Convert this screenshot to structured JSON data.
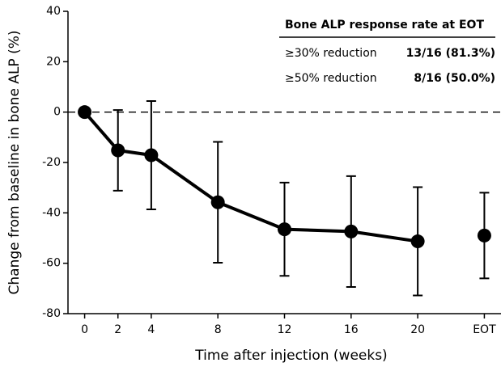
{
  "chart_data": {
    "type": "line",
    "xlabel": "Time after injection (weeks)",
    "ylabel": "Change from baseline in bone ALP (%)",
    "series": [
      {
        "x": [
          0,
          2,
          4,
          8,
          12,
          16,
          20
        ],
        "values": [
          0,
          -15.2,
          -17.1,
          -35.8,
          -46.5,
          -47.4,
          -51.3
        ],
        "errors": [
          0,
          16,
          21.5,
          24,
          18.5,
          22,
          21.5
        ],
        "line": true,
        "color": "#000000"
      },
      {
        "x": [
          24
        ],
        "values": [
          -49
        ],
        "errors": [
          17
        ],
        "line": false,
        "color": "#000000"
      }
    ],
    "xlim": [
      -1,
      25
    ],
    "xticks": [
      0,
      2,
      4,
      8,
      12,
      16,
      20,
      {
        "value": 24,
        "label": "EOT"
      }
    ],
    "ylim": [
      -80,
      40
    ],
    "yticks": [
      -80,
      -60,
      -40,
      -20,
      0,
      20,
      40
    ],
    "reference_line": 0,
    "table": {
      "title": "Bone ALP response rate at EOT",
      "rows": [
        [
          "≥30% reduction",
          "13/16 (81.3%)"
        ],
        [
          "≥50% reduction",
          "8/16 (50.0%)"
        ]
      ]
    }
  }
}
